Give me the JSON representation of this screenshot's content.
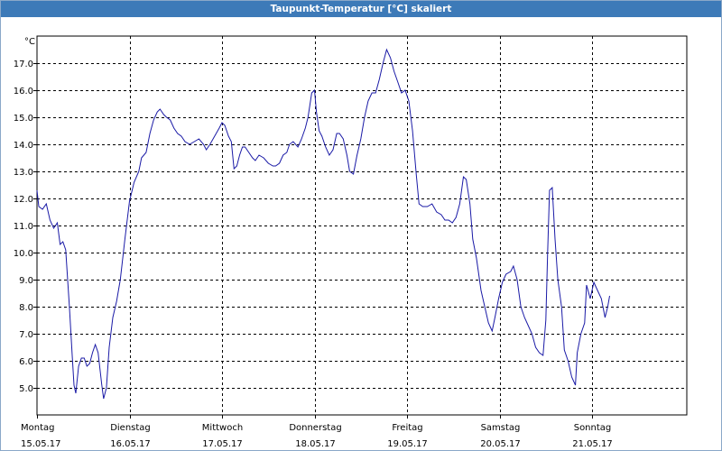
{
  "window": {
    "title": "Taupunkt-Temperatur [°C] skaliert"
  },
  "chart_data": {
    "type": "line",
    "title": "Taupunkt-Temperatur [°C] skaliert",
    "ylabel": "°C",
    "xlabel": "",
    "ylim": [
      4.0,
      18.0
    ],
    "xlim": [
      0,
      7
    ],
    "grid": true,
    "line_color": "#1a1aa6",
    "y_ticks": [
      "5.0",
      "6.0",
      "7.0",
      "8.0",
      "9.0",
      "10.0",
      "11.0",
      "12.0",
      "13.0",
      "14.0",
      "15.0",
      "16.0",
      "17.0"
    ],
    "x_ticks": [
      {
        "day": "Montag",
        "date": "15.05.17"
      },
      {
        "day": "Dienstag",
        "date": "16.05.17"
      },
      {
        "day": "Mittwoch",
        "date": "17.05.17"
      },
      {
        "day": "Donnerstag",
        "date": "18.05.17"
      },
      {
        "day": "Freitag",
        "date": "19.05.17"
      },
      {
        "day": "Samstag",
        "date": "20.05.17"
      },
      {
        "day": "Sonntag",
        "date": "21.05.17"
      }
    ],
    "series": [
      {
        "values": [
          [
            0.0,
            12.3
          ],
          [
            0.02,
            11.7
          ],
          [
            0.06,
            11.6
          ],
          [
            0.1,
            11.8
          ],
          [
            0.14,
            11.2
          ],
          [
            0.18,
            10.9
          ],
          [
            0.22,
            11.1
          ],
          [
            0.25,
            10.3
          ],
          [
            0.28,
            10.4
          ],
          [
            0.31,
            10.1
          ],
          [
            0.35,
            8.0
          ],
          [
            0.38,
            6.2
          ],
          [
            0.4,
            5.1
          ],
          [
            0.42,
            4.8
          ],
          [
            0.45,
            5.8
          ],
          [
            0.48,
            6.1
          ],
          [
            0.51,
            6.1
          ],
          [
            0.54,
            5.8
          ],
          [
            0.57,
            5.9
          ],
          [
            0.6,
            6.3
          ],
          [
            0.63,
            6.6
          ],
          [
            0.66,
            6.3
          ],
          [
            0.7,
            5.1
          ],
          [
            0.72,
            4.6
          ],
          [
            0.75,
            5.0
          ],
          [
            0.78,
            6.5
          ],
          [
            0.82,
            7.6
          ],
          [
            0.86,
            8.2
          ],
          [
            0.9,
            9.0
          ],
          [
            0.95,
            10.5
          ],
          [
            1.0,
            11.9
          ],
          [
            1.05,
            12.6
          ],
          [
            1.1,
            13.0
          ],
          [
            1.13,
            13.5
          ],
          [
            1.18,
            13.7
          ],
          [
            1.22,
            14.4
          ],
          [
            1.26,
            14.9
          ],
          [
            1.3,
            15.2
          ],
          [
            1.33,
            15.3
          ],
          [
            1.37,
            15.1
          ],
          [
            1.4,
            15.0
          ],
          [
            1.44,
            14.9
          ],
          [
            1.48,
            14.6
          ],
          [
            1.52,
            14.4
          ],
          [
            1.56,
            14.3
          ],
          [
            1.6,
            14.1
          ],
          [
            1.65,
            14.0
          ],
          [
            1.7,
            14.1
          ],
          [
            1.75,
            14.2
          ],
          [
            1.8,
            14.0
          ],
          [
            1.83,
            13.8
          ],
          [
            1.87,
            14.0
          ],
          [
            1.92,
            14.3
          ],
          [
            1.97,
            14.6
          ],
          [
            2.0,
            14.8
          ],
          [
            2.03,
            14.7
          ],
          [
            2.07,
            14.3
          ],
          [
            2.1,
            14.1
          ],
          [
            2.13,
            13.1
          ],
          [
            2.16,
            13.2
          ],
          [
            2.19,
            13.6
          ],
          [
            2.22,
            13.9
          ],
          [
            2.25,
            13.9
          ],
          [
            2.29,
            13.7
          ],
          [
            2.33,
            13.5
          ],
          [
            2.36,
            13.4
          ],
          [
            2.4,
            13.6
          ],
          [
            2.45,
            13.5
          ],
          [
            2.5,
            13.3
          ],
          [
            2.55,
            13.2
          ],
          [
            2.58,
            13.2
          ],
          [
            2.62,
            13.3
          ],
          [
            2.66,
            13.6
          ],
          [
            2.7,
            13.7
          ],
          [
            2.73,
            14.0
          ],
          [
            2.77,
            14.1
          ],
          [
            2.82,
            13.9
          ],
          [
            2.86,
            14.2
          ],
          [
            2.9,
            14.6
          ],
          [
            2.93,
            15.0
          ],
          [
            2.97,
            15.9
          ],
          [
            3.0,
            16.0
          ],
          [
            3.02,
            15.2
          ],
          [
            3.05,
            14.5
          ],
          [
            3.08,
            14.3
          ],
          [
            3.12,
            13.9
          ],
          [
            3.16,
            13.6
          ],
          [
            3.2,
            13.8
          ],
          [
            3.24,
            14.4
          ],
          [
            3.27,
            14.4
          ],
          [
            3.31,
            14.2
          ],
          [
            3.35,
            13.6
          ],
          [
            3.38,
            13.0
          ],
          [
            3.42,
            12.9
          ],
          [
            3.46,
            13.6
          ],
          [
            3.5,
            14.2
          ],
          [
            3.54,
            15.0
          ],
          [
            3.58,
            15.6
          ],
          [
            3.62,
            15.9
          ],
          [
            3.66,
            15.9
          ],
          [
            3.7,
            16.4
          ],
          [
            3.74,
            17.0
          ],
          [
            3.78,
            17.5
          ],
          [
            3.82,
            17.2
          ],
          [
            3.86,
            16.7
          ],
          [
            3.9,
            16.3
          ],
          [
            3.94,
            15.9
          ],
          [
            3.98,
            16.0
          ],
          [
            4.02,
            15.6
          ],
          [
            4.06,
            14.5
          ],
          [
            4.1,
            12.9
          ],
          [
            4.13,
            11.8
          ],
          [
            4.17,
            11.7
          ],
          [
            4.22,
            11.7
          ],
          [
            4.27,
            11.8
          ],
          [
            4.32,
            11.5
          ],
          [
            4.37,
            11.4
          ],
          [
            4.41,
            11.2
          ],
          [
            4.45,
            11.2
          ],
          [
            4.49,
            11.1
          ],
          [
            4.53,
            11.3
          ],
          [
            4.57,
            11.8
          ],
          [
            4.61,
            12.8
          ],
          [
            4.64,
            12.7
          ],
          [
            4.68,
            11.8
          ],
          [
            4.71,
            10.5
          ],
          [
            4.75,
            9.8
          ],
          [
            4.8,
            8.6
          ],
          [
            4.84,
            8.0
          ],
          [
            4.88,
            7.4
          ],
          [
            4.92,
            7.1
          ],
          [
            4.95,
            7.6
          ],
          [
            4.99,
            8.3
          ],
          [
            5.03,
            8.9
          ],
          [
            5.07,
            9.2
          ],
          [
            5.12,
            9.3
          ],
          [
            5.15,
            9.5
          ],
          [
            5.19,
            9.0
          ],
          [
            5.23,
            8.0
          ],
          [
            5.27,
            7.6
          ],
          [
            5.31,
            7.3
          ],
          [
            5.35,
            7.0
          ],
          [
            5.39,
            6.5
          ],
          [
            5.43,
            6.3
          ],
          [
            5.47,
            6.2
          ],
          [
            5.5,
            7.5
          ],
          [
            5.52,
            10.0
          ],
          [
            5.54,
            12.3
          ],
          [
            5.57,
            12.4
          ],
          [
            5.6,
            10.5
          ],
          [
            5.63,
            9.0
          ],
          [
            5.67,
            8.0
          ],
          [
            5.7,
            6.4
          ],
          [
            5.74,
            6.0
          ],
          [
            5.78,
            5.4
          ],
          [
            5.82,
            5.1
          ],
          [
            5.84,
            6.3
          ],
          [
            5.88,
            7.0
          ],
          [
            5.92,
            7.4
          ],
          [
            5.94,
            8.8
          ],
          [
            5.98,
            8.3
          ],
          [
            6.02,
            8.9
          ],
          [
            6.06,
            8.6
          ],
          [
            6.1,
            8.3
          ],
          [
            6.14,
            7.6
          ],
          [
            6.17,
            8.0
          ],
          [
            6.19,
            8.4
          ]
        ]
      }
    ]
  }
}
